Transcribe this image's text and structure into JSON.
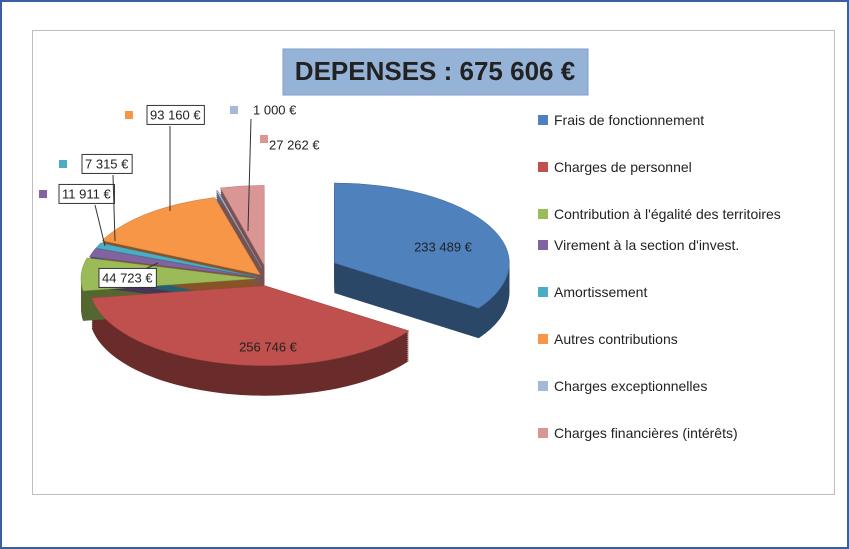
{
  "chart_data": {
    "type": "pie",
    "title": "DEPENSES : 675 606 €",
    "categories": [
      "Frais de fonctionnement",
      "Charges de personnel",
      "Contribution à l'égalité des territoires",
      "Virement à la section d'invest.",
      "Amortissement",
      "Autres contributions",
      "Charges exceptionnelles",
      "Charges financières (intérêts)"
    ],
    "values": [
      233489,
      256746,
      44723,
      11911,
      7315,
      93160,
      1000,
      27262
    ],
    "value_labels": [
      "233 489 €",
      "256 746 €",
      "44 723 €",
      "11 911 €",
      "7 315 €",
      "93 160 €",
      "1 000 €",
      "27 262 €"
    ],
    "colors": [
      "#4f81bd",
      "#c0504d",
      "#9bbb59",
      "#8064a2",
      "#4bacc6",
      "#f79646",
      "#a5b8d8",
      "#d99694"
    ],
    "legend": "right"
  }
}
